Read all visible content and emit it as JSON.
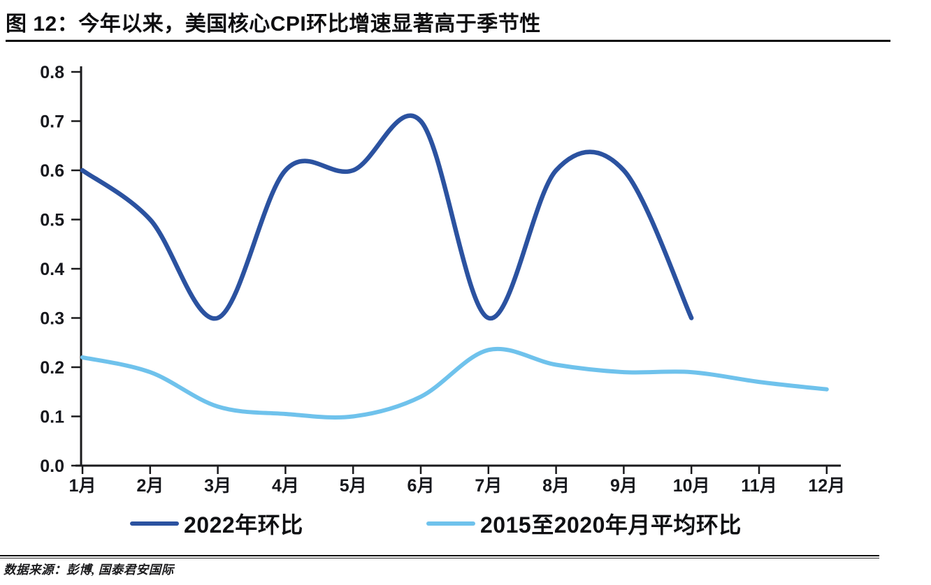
{
  "figure": {
    "title": "图 12：今年以来，美国核心CPI环比增速显著高于季节性",
    "source_note": "数据来源：彭博, 国泰君安国际"
  },
  "chart_data": {
    "type": "line",
    "title": "今年以来，美国核心CPI环比增速显著高于季节性",
    "x_categories": [
      "1月",
      "2月",
      "3月",
      "4月",
      "5月",
      "6月",
      "7月",
      "8月",
      "9月",
      "10月",
      "11月",
      "12月"
    ],
    "y_tick_labels": [
      "0.0",
      "0.1",
      "0.2",
      "0.3",
      "0.4",
      "0.5",
      "0.6",
      "0.7",
      "0.8"
    ],
    "ylim": [
      0.0,
      0.8
    ],
    "xlabel": "",
    "ylabel": "",
    "grid": false,
    "legend_position": "bottom",
    "line_smoothing": "catmull-rom",
    "axis_color": "#1a1a1c",
    "series": [
      {
        "name": "2022年环比",
        "color": "#2B52A0",
        "values": [
          0.6,
          0.5,
          0.3,
          0.6,
          0.6,
          0.7,
          0.3,
          0.6,
          0.6,
          0.3
        ]
      },
      {
        "name": "2015至2020年月平均环比",
        "color": "#6FC2EC",
        "values": [
          0.22,
          0.19,
          0.12,
          0.105,
          0.1,
          0.14,
          0.235,
          0.205,
          0.19,
          0.19,
          0.17,
          0.155
        ]
      }
    ]
  }
}
